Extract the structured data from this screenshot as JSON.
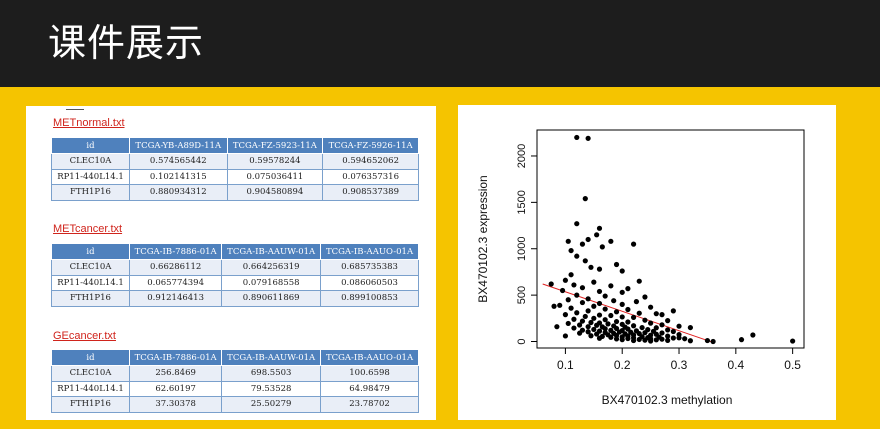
{
  "header": {
    "title": "课件展示"
  },
  "tables": [
    {
      "name": "METnormal.txt",
      "columns": [
        "id",
        "TCGA-YB-A89D-11A",
        "TCGA-FZ-5923-11A",
        "TCGA-FZ-5926-11A"
      ],
      "rows": [
        [
          "CLEC10A",
          "0.574565442",
          "0.59578244",
          "0.594652062"
        ],
        [
          "RP11-440L14.1",
          "0.102141315",
          "0.075036411",
          "0.076357316"
        ],
        [
          "FTH1P16",
          "0.880934312",
          "0.904580894",
          "0.908537389"
        ]
      ]
    },
    {
      "name": "METcancer.txt",
      "columns": [
        "id",
        "TCGA-IB-7886-01A",
        "TCGA-IB-AAUW-01A",
        "TCGA-IB-AAUO-01A"
      ],
      "rows": [
        [
          "CLEC10A",
          "0.66286112",
          "0.664256319",
          "0.685735383"
        ],
        [
          "RP11-440L14.1",
          "0.065774394",
          "0.079168558",
          "0.086060503"
        ],
        [
          "FTH1P16",
          "0.912146413",
          "0.890611869",
          "0.899100853"
        ]
      ]
    },
    {
      "name": "GEcancer.txt",
      "columns": [
        "id",
        "TCGA-IB-7886-01A",
        "TCGA-IB-AAUW-01A",
        "TCGA-IB-AAUO-01A"
      ],
      "rows": [
        [
          "CLEC10A",
          "256.8469",
          "698.5503",
          "100.6598"
        ],
        [
          "RP11-440L14.1",
          "62.60197",
          "79.53528",
          "64.98479"
        ],
        [
          "FTH1P16",
          "37.30378",
          "25.50279",
          "23.78702"
        ]
      ]
    }
  ],
  "chart_data": {
    "type": "scatter",
    "xlabel": "BX470102.3 methylation",
    "ylabel": "BX470102.3 expression",
    "xlim": [
      0.05,
      0.52
    ],
    "ylim": [
      -70,
      2280
    ],
    "xticks": [
      0.1,
      0.2,
      0.3,
      0.4,
      0.5
    ],
    "yticks": [
      0,
      500,
      1000,
      1500,
      2000
    ],
    "grid": false,
    "colors": {
      "points": "#000000",
      "fit_line": "#e02020"
    },
    "fit_line": {
      "x": [
        0.06,
        0.36
      ],
      "y": [
        620,
        -10
      ]
    },
    "points": [
      [
        0.12,
        2200
      ],
      [
        0.14,
        2190
      ],
      [
        0.135,
        1540
      ],
      [
        0.12,
        1270
      ],
      [
        0.16,
        1220
      ],
      [
        0.155,
        1150
      ],
      [
        0.14,
        1100
      ],
      [
        0.165,
        1020
      ],
      [
        0.105,
        1080
      ],
      [
        0.18,
        1080
      ],
      [
        0.13,
        1050
      ],
      [
        0.22,
        1050
      ],
      [
        0.11,
        980
      ],
      [
        0.12,
        920
      ],
      [
        0.135,
        870
      ],
      [
        0.19,
        830
      ],
      [
        0.16,
        780
      ],
      [
        0.11,
        720
      ],
      [
        0.145,
        800
      ],
      [
        0.2,
        760
      ],
      [
        0.1,
        660
      ],
      [
        0.15,
        640
      ],
      [
        0.23,
        650
      ],
      [
        0.075,
        620
      ],
      [
        0.115,
        610
      ],
      [
        0.18,
        600
      ],
      [
        0.13,
        580
      ],
      [
        0.21,
        570
      ],
      [
        0.095,
        550
      ],
      [
        0.16,
        540
      ],
      [
        0.2,
        530
      ],
      [
        0.12,
        500
      ],
      [
        0.17,
        490
      ],
      [
        0.24,
        480
      ],
      [
        0.14,
        460
      ],
      [
        0.105,
        450
      ],
      [
        0.185,
        440
      ],
      [
        0.225,
        430
      ],
      [
        0.13,
        420
      ],
      [
        0.16,
        410
      ],
      [
        0.2,
        400
      ],
      [
        0.09,
        390
      ],
      [
        0.15,
        380
      ],
      [
        0.25,
        370
      ],
      [
        0.11,
        360
      ],
      [
        0.17,
        350
      ],
      [
        0.21,
        345
      ],
      [
        0.14,
        330
      ],
      [
        0.19,
        320
      ],
      [
        0.12,
        310
      ],
      [
        0.23,
        305
      ],
      [
        0.26,
        300
      ],
      [
        0.1,
        290
      ],
      [
        0.16,
        285
      ],
      [
        0.18,
        280
      ],
      [
        0.135,
        270
      ],
      [
        0.2,
        265
      ],
      [
        0.22,
        260
      ],
      [
        0.15,
        250
      ],
      [
        0.115,
        240
      ],
      [
        0.17,
        235
      ],
      [
        0.24,
        230
      ],
      [
        0.28,
        225
      ],
      [
        0.13,
        220
      ],
      [
        0.19,
        215
      ],
      [
        0.21,
        210
      ],
      [
        0.145,
        205
      ],
      [
        0.16,
        200
      ],
      [
        0.25,
        198
      ],
      [
        0.105,
        195
      ],
      [
        0.175,
        190
      ],
      [
        0.2,
        185
      ],
      [
        0.27,
        180
      ],
      [
        0.125,
        178
      ],
      [
        0.155,
        175
      ],
      [
        0.22,
        170
      ],
      [
        0.185,
        168
      ],
      [
        0.3,
        165
      ],
      [
        0.14,
        160
      ],
      [
        0.165,
        158
      ],
      [
        0.205,
        155
      ],
      [
        0.235,
        150
      ],
      [
        0.26,
        148
      ],
      [
        0.115,
        145
      ],
      [
        0.19,
        140
      ],
      [
        0.17,
        138
      ],
      [
        0.21,
        135
      ],
      [
        0.15,
        130
      ],
      [
        0.245,
        128
      ],
      [
        0.28,
        125
      ],
      [
        0.13,
        122
      ],
      [
        0.18,
        120
      ],
      [
        0.2,
        118
      ],
      [
        0.225,
        115
      ],
      [
        0.16,
        112
      ],
      [
        0.255,
        110
      ],
      [
        0.29,
        108
      ],
      [
        0.14,
        105
      ],
      [
        0.195,
        102
      ],
      [
        0.215,
        100
      ],
      [
        0.17,
        98
      ],
      [
        0.24,
        95
      ],
      [
        0.27,
        92
      ],
      [
        0.125,
        90
      ],
      [
        0.185,
        88
      ],
      [
        0.23,
        85
      ],
      [
        0.205,
        82
      ],
      [
        0.155,
        80
      ],
      [
        0.26,
        78
      ],
      [
        0.3,
        75
      ],
      [
        0.175,
        72
      ],
      [
        0.22,
        70
      ],
      [
        0.25,
        68
      ],
      [
        0.19,
        65
      ],
      [
        0.145,
        62
      ],
      [
        0.21,
        60
      ],
      [
        0.28,
        58
      ],
      [
        0.165,
        55
      ],
      [
        0.235,
        52
      ],
      [
        0.2,
        50
      ],
      [
        0.265,
        48
      ],
      [
        0.18,
        45
      ],
      [
        0.245,
        42
      ],
      [
        0.22,
        40
      ],
      [
        0.29,
        38
      ],
      [
        0.16,
        35
      ],
      [
        0.21,
        32
      ],
      [
        0.25,
        30
      ],
      [
        0.19,
        28
      ],
      [
        0.27,
        25
      ],
      [
        0.23,
        22
      ],
      [
        0.2,
        20
      ],
      [
        0.26,
        18
      ],
      [
        0.31,
        30
      ],
      [
        0.24,
        15
      ],
      [
        0.28,
        12
      ],
      [
        0.22,
        10
      ],
      [
        0.32,
        8
      ],
      [
        0.25,
        5
      ],
      [
        0.35,
        10
      ],
      [
        0.36,
        0
      ],
      [
        0.3,
        40
      ],
      [
        0.08,
        380
      ],
      [
        0.085,
        160
      ],
      [
        0.1,
        60
      ],
      [
        0.29,
        330
      ],
      [
        0.32,
        150
      ],
      [
        0.27,
        290
      ],
      [
        0.41,
        20
      ],
      [
        0.43,
        70
      ],
      [
        0.5,
        5
      ]
    ]
  }
}
